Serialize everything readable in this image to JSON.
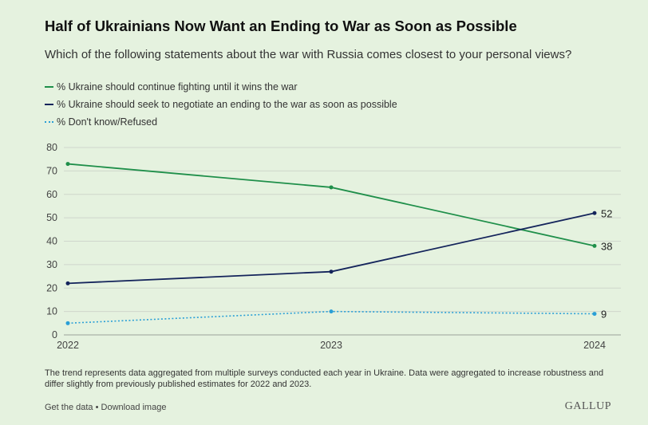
{
  "chart_data": {
    "type": "line",
    "title": "Half of Ukrainians Now Want an Ending to War as Soon as Possible",
    "subtitle": "Which of the following statements about the war with Russia comes closest to your personal views?",
    "x": [
      "2022",
      "2023",
      "2024"
    ],
    "ylim": [
      0,
      80
    ],
    "yticks": [
      0,
      10,
      20,
      30,
      40,
      50,
      60,
      70,
      80
    ],
    "grid": true,
    "legend_position": "top-left",
    "series": [
      {
        "name": "% Ukraine should continue fighting until it wins the war",
        "values": [
          73,
          63,
          38
        ],
        "color": "#1f8f4a",
        "dash": "solid",
        "end_label": "38"
      },
      {
        "name": "% Ukraine should seek to negotiate an ending to the war as soon as possible",
        "values": [
          22,
          27,
          52
        ],
        "color": "#14245b",
        "dash": "solid",
        "end_label": "52"
      },
      {
        "name": "% Don't know/Refused",
        "values": [
          5,
          10,
          9
        ],
        "color": "#2a9fd6",
        "dash": "dotted",
        "end_label": "9"
      }
    ]
  },
  "footnote": "The trend represents data aggregated from multiple surveys conducted each year in Ukraine. Data were aggregated to increase robustness and differ slightly from previously published estimates for 2022 and 2023.",
  "links": {
    "get_data": "Get the data",
    "separator": " • ",
    "download": "Download image"
  },
  "brand": "GALLUP"
}
